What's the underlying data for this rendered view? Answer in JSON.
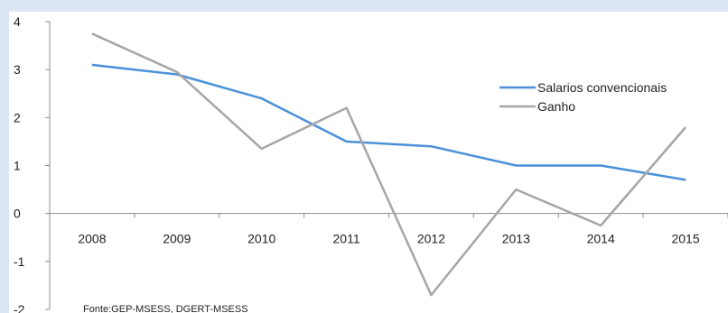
{
  "chart_data": {
    "type": "line",
    "title": "",
    "xlabel": "",
    "ylabel": "",
    "categories": [
      "2008",
      "2009",
      "2010",
      "2011",
      "2012",
      "2013",
      "2014",
      "2015"
    ],
    "y_ticks": [
      "4",
      "3",
      "2",
      "1",
      "0",
      "-1",
      "-2"
    ],
    "ylim": [
      -2,
      4
    ],
    "grid": false,
    "legend_position": "right",
    "series": [
      {
        "name": "Salarios convencionais",
        "color": "#4a90d9",
        "values": [
          3.1,
          2.9,
          2.4,
          1.5,
          1.4,
          1.0,
          1.0,
          0.7
        ]
      },
      {
        "name": "Ganho",
        "color": "#a6a6a6",
        "values": [
          3.75,
          2.95,
          1.35,
          2.2,
          -1.7,
          0.5,
          -0.25,
          1.8
        ]
      }
    ],
    "source": "Fonte:GEP-MSESS, DGERT-MSESS"
  }
}
